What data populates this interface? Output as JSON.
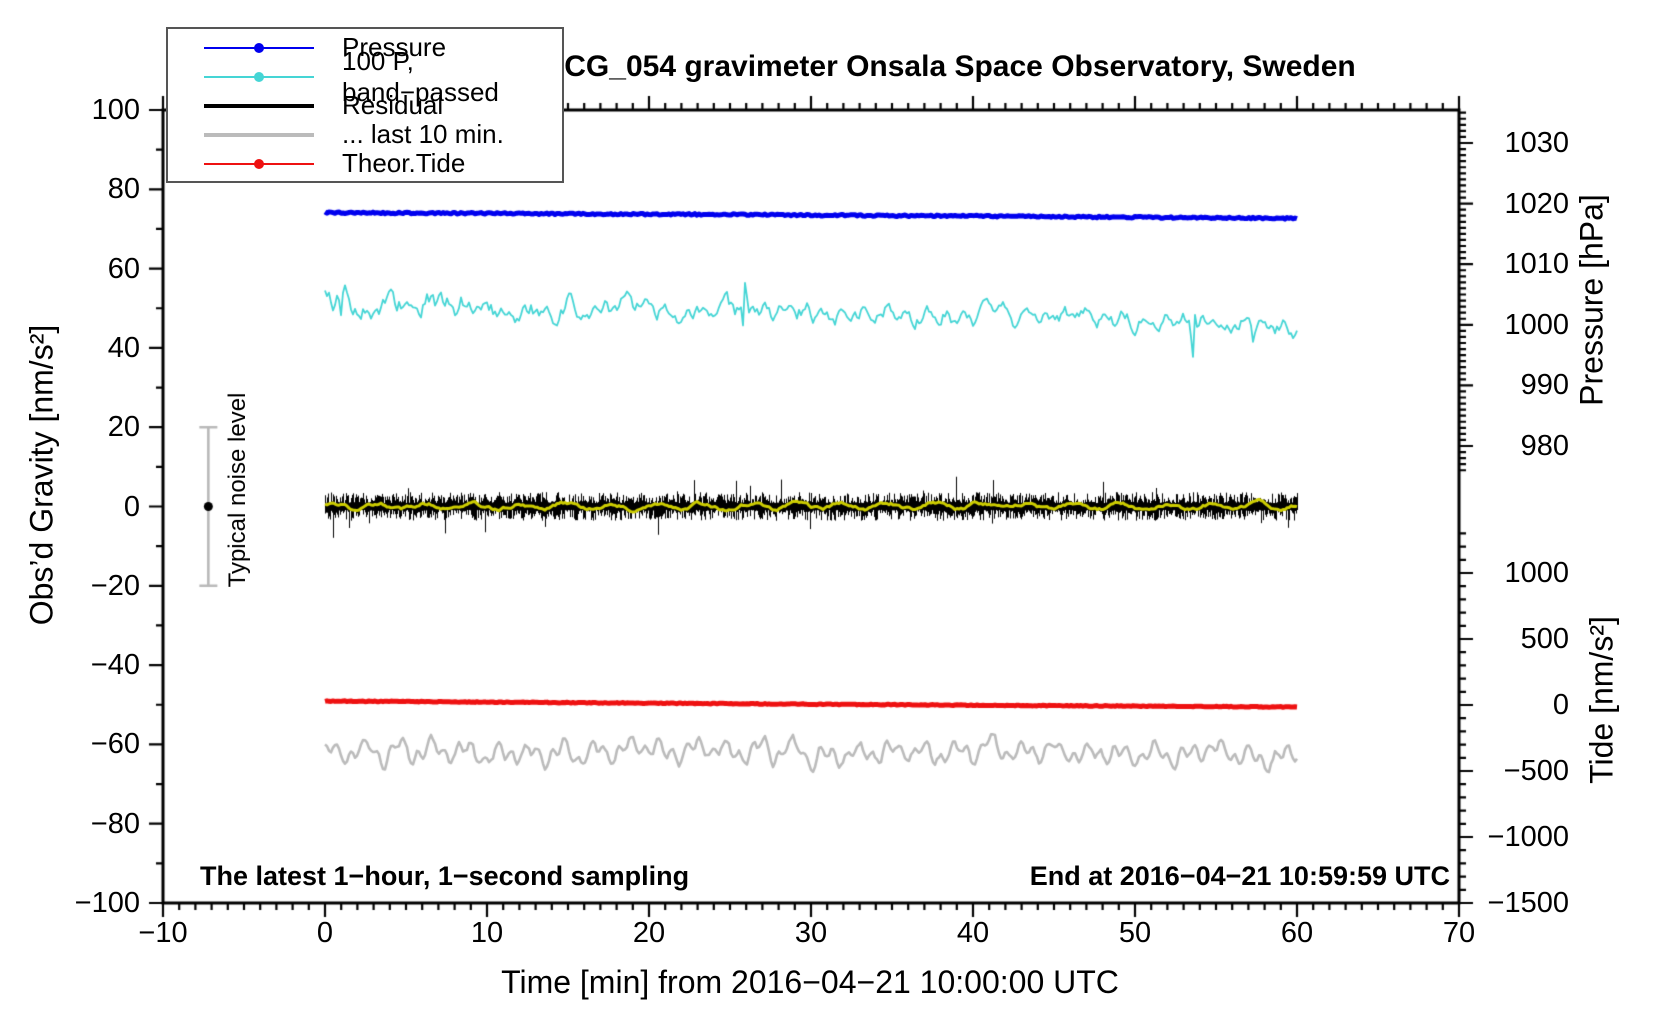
{
  "title": "SCG_054 gravimeter Onsala Space Observatory, Sweden",
  "legend": {
    "entries": [
      {
        "label": "Pressure",
        "color": "#0000ee",
        "marker": true,
        "thick": false
      },
      {
        "label": "100 P, band−passed",
        "color": "#45d5d5",
        "marker": true,
        "thick": false
      },
      {
        "label": "Residual",
        "color": "#000000",
        "marker": false,
        "thick": true
      },
      {
        "label": "... last 10 min.",
        "color": "#bbbbbb",
        "marker": false,
        "thick": true
      },
      {
        "label": "Theor.Tide",
        "color": "#ee1111",
        "marker": true,
        "thick": false
      }
    ]
  },
  "axes": {
    "left": {
      "label": "Obs’d Gravity [nm/s²]",
      "tick_values": [
        100,
        80,
        60,
        40,
        20,
        0,
        -20,
        -40,
        -60,
        -80,
        -100
      ],
      "tick_labels": [
        "100",
        "80",
        "60",
        "40",
        "20",
        "0",
        "−20",
        "−40",
        "−60",
        "−80",
        "−100"
      ],
      "range": [
        -100,
        100
      ],
      "minor_step": 10
    },
    "bottom": {
      "label": "Time [min] from 2016−04−21 10:00:00 UTC",
      "tick_values": [
        -10,
        0,
        10,
        20,
        30,
        40,
        50,
        60,
        70
      ],
      "tick_labels": [
        "−10",
        "0",
        "10",
        "20",
        "30",
        "40",
        "50",
        "60",
        "70"
      ],
      "range": [
        -10,
        70
      ],
      "minor_step": 1
    },
    "right_pressure": {
      "label": "Pressure [hPa]",
      "tick_values": [
        1030,
        1020,
        1010,
        1000,
        990,
        980
      ],
      "tick_labels": [
        "1030",
        "1020",
        "1010",
        "1000",
        "990",
        "980"
      ],
      "minor_step": 1
    },
    "right_tide": {
      "label": "Tide [nm/s²]",
      "tick_values": [
        1000,
        500,
        0,
        -500,
        -1000,
        -1500
      ],
      "tick_labels": [
        "1000",
        "500",
        "0",
        "−500",
        "−1000",
        "−1500"
      ],
      "minor_step": 100
    }
  },
  "annotations": {
    "noise_label": "Typical noise level",
    "sampling_note": "The latest 1−hour, 1−second sampling",
    "end_note": "End at 2016−04−21 10:59:59 UTC"
  },
  "chart_data": {
    "type": "line",
    "title": "SCG_054 gravimeter Onsala Space Observatory, Sweden",
    "xlabel": "Time [min] from 2016−04−21 10:00:00 UTC",
    "x_range_minutes": [
      -10,
      70
    ],
    "data_span_minutes": [
      0,
      60
    ],
    "left_axis": {
      "label": "Obs’d Gravity [nm/s²]",
      "range": [
        -100,
        100
      ]
    },
    "pressure_axis": {
      "label": "Pressure [hPa]",
      "shown_ticks": [
        1030,
        980
      ]
    },
    "tide_axis": {
      "label": "Tide [nm/s²]",
      "shown_ticks": [
        1000,
        -1500
      ]
    },
    "x_sample_minutes": [
      0,
      5,
      10,
      15,
      20,
      25,
      30,
      35,
      40,
      45,
      50,
      55,
      60
    ],
    "series": [
      {
        "name": "Pressure",
        "axis": "pressure_hPa",
        "color": "#0000ee",
        "values": [
          1018.5,
          1018.45,
          1018.4,
          1018.3,
          1018.25,
          1018.2,
          1018.1,
          1018.0,
          1017.95,
          1017.85,
          1017.75,
          1017.65,
          1017.55
        ]
      },
      {
        "name": "100 P, band−passed",
        "axis": "gravity_nms2",
        "color": "#45d5d5",
        "center_values": [
          52,
          51.5,
          51,
          50.5,
          50,
          49.5,
          49,
          48.5,
          48,
          47.5,
          47,
          46,
          45
        ],
        "noise_amplitude": [
          6.5,
          5.5,
          5,
          4.8,
          4.5,
          4.2,
          4,
          3.8,
          3.6,
          3.5,
          3.4,
          3.4,
          3.3
        ],
        "spikes": [
          {
            "t": 0.9,
            "size": 9
          },
          {
            "t": 25.9,
            "size": 10
          },
          {
            "t": 53.6,
            "size": -11
          },
          {
            "t": 57.2,
            "size": 5
          }
        ]
      },
      {
        "name": "Residual",
        "axis": "gravity_nms2",
        "color": "#000000",
        "center_values": [
          0,
          0,
          0,
          0,
          0,
          0,
          0,
          0,
          0,
          0,
          0,
          0,
          0
        ],
        "typical_band": 2.5,
        "spike_max": 9
      },
      {
        "name": "Residual low−passed (overlay)",
        "axis": "gravity_nms2",
        "color": "#cccc00",
        "center_values": [
          0,
          0,
          0,
          0,
          0,
          0,
          0,
          0,
          0,
          0,
          0,
          0,
          0
        ],
        "amplitude": 0.9
      },
      {
        "name": "... last 10 min.",
        "axis": "gravity_nms2",
        "color": "#bbbbbb",
        "center_values": [
          -62,
          -61.8,
          -62,
          -62.2,
          -62,
          -61.8,
          -62,
          -62.1,
          -62,
          -61.9,
          -62,
          -62.2,
          -62.3
        ],
        "amplitude": 2.8
      },
      {
        "name": "Theor.Tide",
        "axis": "tide_nms2",
        "color": "#ee1111",
        "values": [
          30,
          26,
          22,
          18,
          14,
          10,
          6,
          2,
          -2,
          -5,
          -8,
          -12,
          -15
        ]
      }
    ],
    "noise_bar": {
      "label": "Typical noise level",
      "x_minute": -7.2,
      "center": 0,
      "half_range": 20
    }
  }
}
